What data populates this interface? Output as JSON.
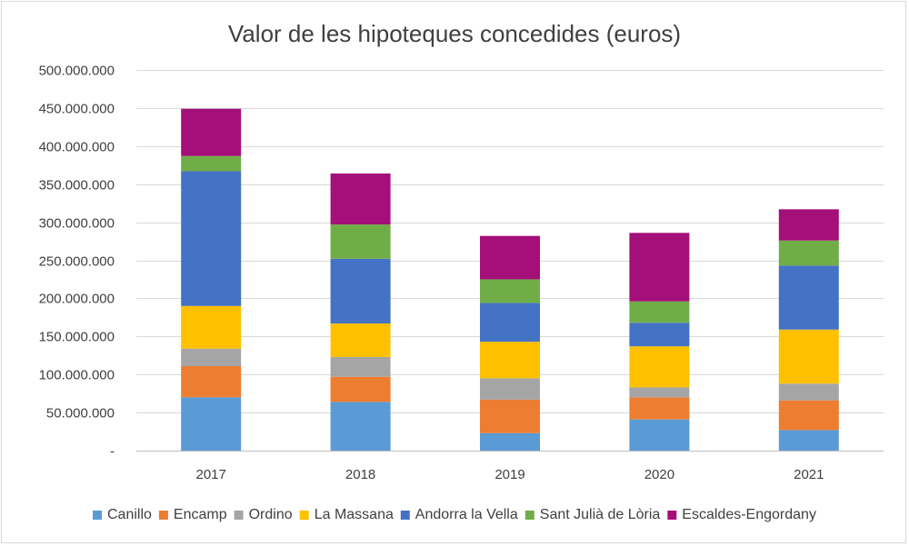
{
  "chart_data": {
    "type": "bar",
    "stacked": true,
    "title": "Valor de les hipoteques concedides (euros)",
    "xlabel": "",
    "ylabel": "",
    "ylim": [
      0,
      500000000
    ],
    "y_ticks": [
      0,
      50000000,
      100000000,
      150000000,
      200000000,
      250000000,
      300000000,
      350000000,
      400000000,
      450000000,
      500000000
    ],
    "y_tick_labels": [
      "-",
      "50.000.000",
      "100.000.000",
      "150.000.000",
      "200.000.000",
      "250.000.000",
      "300.000.000",
      "350.000.000",
      "400.000.000",
      "450.000.000",
      "500.000.000"
    ],
    "grid": true,
    "legend_position": "bottom",
    "categories": [
      "2017",
      "2018",
      "2019",
      "2020",
      "2021"
    ],
    "series": [
      {
        "name": "Canillo",
        "color": "#5B9BD5",
        "values": [
          70000000,
          64000000,
          23000000,
          41000000,
          27000000
        ]
      },
      {
        "name": "Encamp",
        "color": "#ED7D31",
        "values": [
          41000000,
          33000000,
          44000000,
          29000000,
          39000000
        ]
      },
      {
        "name": "Ordino",
        "color": "#A5A5A5",
        "values": [
          23000000,
          26000000,
          28000000,
          13000000,
          22000000
        ]
      },
      {
        "name": "La Massana",
        "color": "#FFC000",
        "values": [
          56000000,
          44000000,
          48000000,
          54000000,
          71000000
        ]
      },
      {
        "name": "Andorra la Vella",
        "color": "#4472C4",
        "values": [
          177000000,
          85000000,
          51000000,
          31000000,
          84000000
        ]
      },
      {
        "name": "Sant Julià de Lòria",
        "color": "#70AD47",
        "values": [
          20000000,
          45000000,
          31000000,
          28000000,
          33000000
        ]
      },
      {
        "name": "Escaldes-Engordany",
        "color": "#A50F7A",
        "values": [
          62000000,
          67000000,
          57000000,
          90000000,
          41000000
        ]
      }
    ]
  }
}
